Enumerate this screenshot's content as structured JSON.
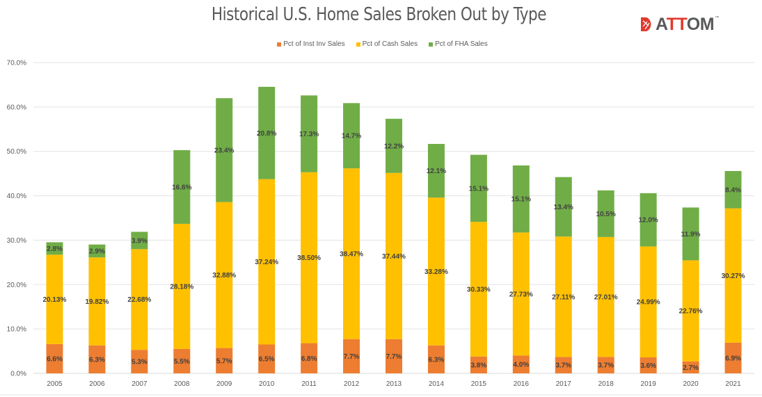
{
  "brand": {
    "logo_text_left": "A",
    "logo_text_red": "TT",
    "logo_text_right": "OM",
    "logo_tm": "™",
    "logo_icon": "attom-house-icon",
    "logo_color": "#e03a2e"
  },
  "chart_data": {
    "type": "bar",
    "stacked": true,
    "title": "Historical U.S. Home Sales Broken Out by Type",
    "xlabel": "",
    "ylabel": "",
    "ylim": [
      0,
      70
    ],
    "yticks": [
      "0.0%",
      "10.0%",
      "20.0%",
      "30.0%",
      "40.0%",
      "50.0%",
      "60.0%",
      "70.0%"
    ],
    "ytick_values": [
      0,
      10,
      20,
      30,
      40,
      50,
      60,
      70
    ],
    "grid": true,
    "legend_position": "top-center",
    "categories": [
      "2005",
      "2006",
      "2007",
      "2008",
      "2009",
      "2010",
      "2011",
      "2012",
      "2013",
      "2014",
      "2015",
      "2016",
      "2017",
      "2018",
      "2019",
      "2020",
      "2021"
    ],
    "series": [
      {
        "name": "Pct of Inst Inv Sales",
        "color": "#ed7d31",
        "values": [
          6.6,
          6.3,
          5.3,
          5.5,
          5.7,
          6.5,
          6.8,
          7.7,
          7.7,
          6.3,
          3.8,
          4.0,
          3.7,
          3.7,
          3.6,
          2.7,
          6.9
        ],
        "labels": [
          "6.6%",
          "6.3%",
          "5.3%",
          "5.5%",
          "5.7%",
          "6.5%",
          "6.8%",
          "7.7%",
          "7.7%",
          "6.3%",
          "3.8%",
          "4.0%",
          "3.7%",
          "3.7%",
          "3.6%",
          "2.7%",
          "6.9%"
        ]
      },
      {
        "name": "Pct of Cash Sales",
        "color": "#ffc000",
        "values": [
          20.13,
          19.82,
          22.68,
          28.18,
          32.88,
          37.24,
          38.5,
          38.47,
          37.44,
          33.28,
          30.33,
          27.73,
          27.11,
          27.01,
          24.99,
          22.76,
          30.27
        ],
        "labels": [
          "20.13%",
          "19.82%",
          "22.68%",
          "28.18%",
          "32.88%",
          "37.24%",
          "38.50%",
          "38.47%",
          "37.44%",
          "33.28%",
          "30.33%",
          "27.73%",
          "27.11%",
          "27.01%",
          "24.99%",
          "22.76%",
          "30.27%"
        ]
      },
      {
        "name": "Pct of FHA Sales",
        "color": "#70ad47",
        "values": [
          2.8,
          2.9,
          3.9,
          16.6,
          23.4,
          20.8,
          17.3,
          14.7,
          12.2,
          12.1,
          15.1,
          15.1,
          13.4,
          10.5,
          12.0,
          11.9,
          8.4
        ],
        "labels": [
          "2.8%",
          "2.9%",
          "3.9%",
          "16.6%",
          "23.4%",
          "20.8%",
          "17.3%",
          "14.7%",
          "12.2%",
          "12.1%",
          "15.1%",
          "15.1%",
          "13.4%",
          "10.5%",
          "12.0%",
          "11.9%",
          "8.4%"
        ]
      }
    ]
  }
}
